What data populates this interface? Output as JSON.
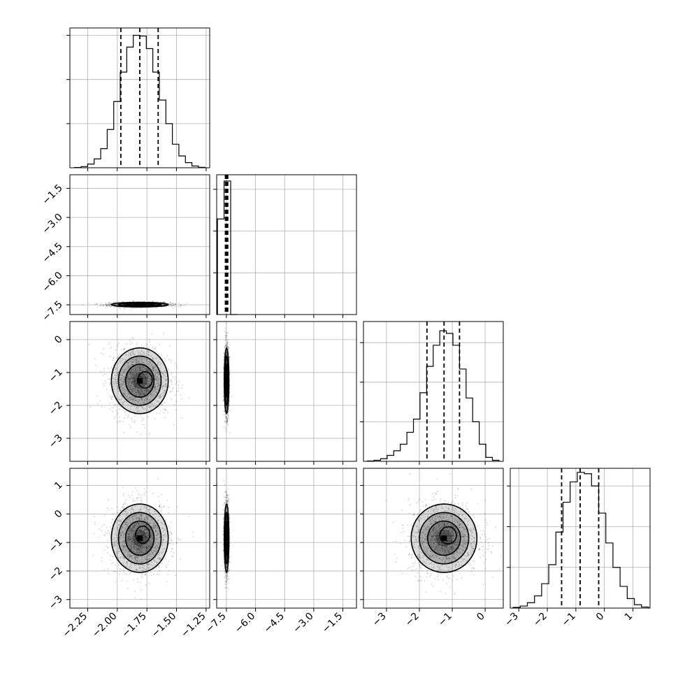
{
  "chart_data": {
    "type": "corner",
    "grid": true,
    "parameters": [
      {
        "ticks": [
          -2.25,
          -2.0,
          -1.75,
          -1.5,
          -1.25
        ],
        "tick_labels": [
          "−2.25",
          "−2.00",
          "−1.75",
          "−1.50",
          "−1.25"
        ],
        "range": [
          -2.4,
          -1.22
        ],
        "hist_edges": [
          -2.36,
          -2.305,
          -2.25,
          -2.195,
          -2.14,
          -2.085,
          -2.03,
          -1.975,
          -1.92,
          -1.865,
          -1.81,
          -1.755,
          -1.7,
          -1.645,
          -1.59,
          -1.535,
          -1.48,
          -1.425,
          -1.37,
          -1.315,
          -1.26
        ],
        "hist_counts": [
          2,
          8,
          25,
          60,
          130,
          260,
          450,
          650,
          820,
          900,
          895,
          810,
          650,
          460,
          300,
          160,
          80,
          35,
          12,
          3
        ],
        "quantiles": [
          -1.97,
          -1.81,
          -1.655
        ],
        "hist_ticks": [
          300,
          600,
          900
        ],
        "hist_ymax": 950
      },
      {
        "ticks": [
          -7.5,
          -6.0,
          -4.5,
          -3.0,
          -1.5
        ],
        "tick_labels": [
          "−7.5",
          "−6.0",
          "−4.5",
          "−3.0",
          "−1.5"
        ],
        "range": [
          -8.0,
          -0.8
        ],
        "hist_edges": [
          -7.96,
          -7.62,
          -7.28,
          -6.94
        ],
        "hist_counts": [
          4580,
          6400,
          1
        ],
        "quantiles": [
          -7.55,
          -7.49,
          -7.43
        ],
        "hist_ticks": [
          2000,
          4000,
          6000
        ],
        "hist_ymax": 6700
      },
      {
        "ticks": [
          -3,
          -2,
          -1,
          0
        ],
        "tick_labels": [
          "−3",
          "−2",
          "−1",
          "0"
        ],
        "range": [
          -3.7,
          0.55
        ],
        "hist_edges": [
          -3.58,
          -3.38,
          -3.18,
          -2.98,
          -2.78,
          -2.58,
          -2.38,
          -2.18,
          -1.98,
          -1.78,
          -1.58,
          -1.38,
          -1.18,
          -0.98,
          -0.78,
          -0.58,
          -0.38,
          -0.18,
          0.02,
          0.22,
          0.42
        ],
        "hist_counts": [
          3,
          8,
          20,
          45,
          80,
          130,
          220,
          320,
          520,
          720,
          880,
          990,
          970,
          880,
          700,
          480,
          300,
          130,
          30,
          8
        ],
        "quantiles": [
          -1.77,
          -1.25,
          -0.78
        ],
        "hist_ticks": [
          300,
          600,
          900
        ],
        "hist_ymax": 1060
      },
      {
        "ticks": [
          -3,
          -2,
          -1,
          0,
          1
        ],
        "tick_labels": [
          "−3",
          "−2",
          "−1",
          "0",
          "1"
        ],
        "range": [
          -3.3,
          1.6
        ],
        "hist_edges": [
          -3.2,
          -2.95,
          -2.7,
          -2.45,
          -2.2,
          -1.95,
          -1.7,
          -1.45,
          -1.2,
          -0.95,
          -0.7,
          -0.45,
          -0.2,
          0.05,
          0.3,
          0.55,
          0.8,
          1.05,
          1.3,
          1.55
        ],
        "hist_counts": [
          5,
          15,
          40,
          90,
          180,
          320,
          560,
          780,
          930,
          1000,
          990,
          900,
          700,
          480,
          300,
          160,
          70,
          25,
          8
        ],
        "quantiles": [
          -1.5,
          -0.85,
          -0.2
        ],
        "hist_ticks": [
          300,
          600,
          900
        ],
        "hist_ymax": 1030
      }
    ],
    "pairs": [
      {
        "row": 1,
        "col": 0,
        "mean": [
          -1.81,
          -7.49
        ],
        "sd": [
          0.12,
          0.06
        ],
        "lobe": [
          -1.75,
          -7.5
        ]
      },
      {
        "row": 2,
        "col": 0,
        "mean": [
          -1.81,
          -1.25
        ],
        "sd": [
          0.12,
          0.5
        ],
        "lobe": [
          -1.72,
          -1.2
        ]
      },
      {
        "row": 2,
        "col": 1,
        "mean": [
          -7.49,
          -1.25
        ],
        "sd": [
          0.06,
          0.5
        ],
        "lobe": [
          -7.48,
          -1.2
        ]
      },
      {
        "row": 3,
        "col": 0,
        "mean": [
          -1.81,
          -0.85
        ],
        "sd": [
          0.12,
          0.6
        ],
        "lobe": [
          -1.76,
          -0.6
        ]
      },
      {
        "row": 3,
        "col": 1,
        "mean": [
          -7.49,
          -0.85
        ],
        "sd": [
          0.06,
          0.6
        ],
        "lobe": [
          -7.48,
          -0.8
        ]
      },
      {
        "row": 3,
        "col": 2,
        "mean": [
          -1.25,
          -0.85
        ],
        "sd": [
          0.5,
          0.6
        ],
        "lobe": [
          -1.0,
          -0.65
        ]
      }
    ],
    "contour_levels_sigma": [
      0.5,
      1.0,
      1.5,
      2.0
    ],
    "colors": {
      "line": "#000000",
      "grid": "#b0b0b0",
      "density": "#000000"
    }
  }
}
